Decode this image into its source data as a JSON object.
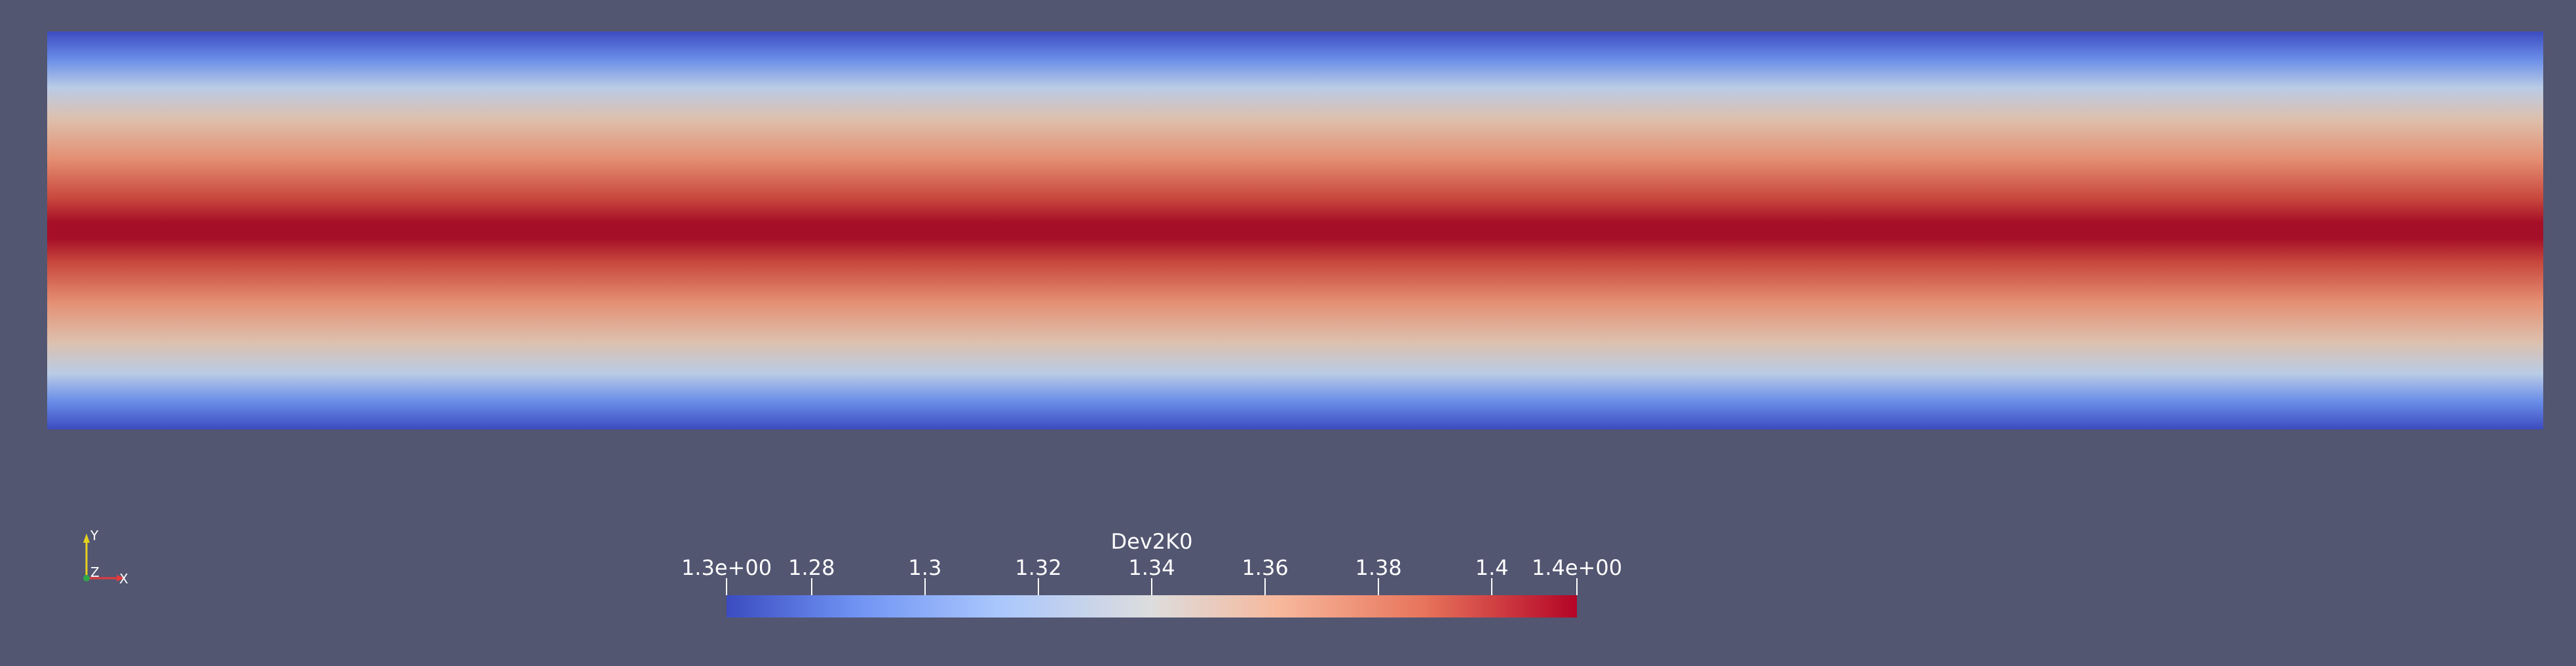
{
  "view": {
    "background_color": "#525671",
    "colormap": "Cool to Warm",
    "colormap_colors": [
      "#3b4cc0",
      "#dddddd",
      "#b40426"
    ]
  },
  "colorbar": {
    "title": "Dev2K0",
    "range": [
      1.26,
      1.41
    ],
    "ticks": [
      {
        "value": 1.26,
        "label": "1.3e+00"
      },
      {
        "value": 1.275,
        "label": "1.28"
      },
      {
        "value": 1.295,
        "label": "1.3"
      },
      {
        "value": 1.315,
        "label": "1.32"
      },
      {
        "value": 1.335,
        "label": "1.34"
      },
      {
        "value": 1.355,
        "label": "1.36"
      },
      {
        "value": 1.375,
        "label": "1.38"
      },
      {
        "value": 1.395,
        "label": "1.4"
      },
      {
        "value": 1.41,
        "label": "1.4e+00"
      }
    ]
  },
  "orientation_axes": {
    "x_label": "X",
    "y_label": "Y",
    "z_label": "Z",
    "x_color": "#e23a3a",
    "y_color": "#e6d11e",
    "z_color": "#2ea84a"
  }
}
